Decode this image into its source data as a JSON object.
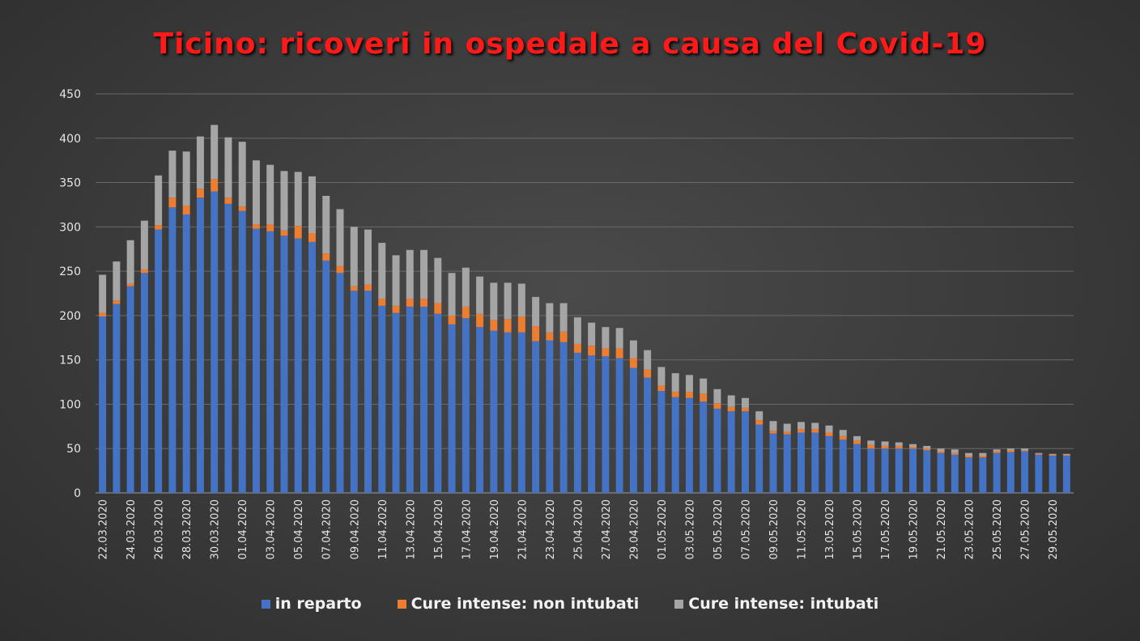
{
  "chart_data": {
    "type": "bar",
    "stacked": true,
    "title": "Ticino: ricoveri in ospedale a causa del Covid-19",
    "ylim": [
      0,
      450
    ],
    "y_ticks": [
      "0",
      "50",
      "100",
      "150",
      "200",
      "250",
      "300",
      "350",
      "400",
      "450"
    ],
    "grid": true,
    "legend_position": "bottom",
    "categories": [
      "22.03.2020",
      "23.03.2020",
      "24.03.2020",
      "25.03.2020",
      "26.03.2020",
      "27.03.2020",
      "28.03.2020",
      "29.03.2020",
      "30.03.2020",
      "31.03.2020",
      "01.04.2020",
      "02.04.2020",
      "03.04.2020",
      "04.04.2020",
      "05.04.2020",
      "06.04.2020",
      "07.04.2020",
      "08.04.2020",
      "09.04.2020",
      "10.04.2020",
      "11.04.2020",
      "12.04.2020",
      "13.04.2020",
      "14.04.2020",
      "15.04.2020",
      "16.04.2020",
      "17.04.2020",
      "18.04.2020",
      "19.04.2020",
      "20.04.2020",
      "21.04.2020",
      "22.04.2020",
      "23.04.2020",
      "24.04.2020",
      "25.04.2020",
      "26.04.2020",
      "27.04.2020",
      "28.04.2020",
      "29.04.2020",
      "30.04.2020",
      "01.05.2020",
      "02.05.2020",
      "03.05.2020",
      "04.05.2020",
      "05.05.2020",
      "06.05.2020",
      "07.05.2020",
      "08.05.2020",
      "09.05.2020",
      "10.05.2020",
      "11.05.2020",
      "12.05.2020",
      "13.05.2020",
      "14.05.2020",
      "15.05.2020",
      "16.05.2020",
      "17.05.2020",
      "18.05.2020",
      "19.05.2020",
      "20.05.2020",
      "21.05.2020",
      "22.05.2020",
      "23.05.2020",
      "24.05.2020",
      "25.05.2020",
      "26.05.2020",
      "27.05.2020",
      "28.05.2020",
      "29.05.2020",
      "30.05.2020"
    ],
    "tick_labels": [
      "22.03.2020",
      "",
      "24.03.2020",
      "",
      "26.03.2020",
      "",
      "28.03.2020",
      "",
      "30.03.2020",
      "",
      "01.04.2020",
      "",
      "03.04.2020",
      "",
      "05.04.2020",
      "",
      "07.04.2020",
      "",
      "09.04.2020",
      "",
      "11.04.2020",
      "",
      "13.04.2020",
      "",
      "15.04.2020",
      "",
      "17.04.2020",
      "",
      "19.04.2020",
      "",
      "21.04.2020",
      "",
      "23.04.2020",
      "",
      "25.04.2020",
      "",
      "27.04.2020",
      "",
      "29.04.2020",
      "",
      "01.05.2020",
      "",
      "03.05.2020",
      "",
      "05.05.2020",
      "",
      "07.05.2020",
      "",
      "09.05.2020",
      "",
      "11.05.2020",
      "",
      "13.05.2020",
      "",
      "15.05.2020",
      "",
      "17.05.2020",
      "",
      "19.05.2020",
      "",
      "21.05.2020",
      "",
      "23.05.2020",
      "",
      "25.05.2020",
      "",
      "27.05.2020",
      "",
      "29.05.2020",
      ""
    ],
    "series": [
      {
        "name": "in reparto",
        "color": "#4472c4",
        "values": [
          199,
          213,
          233,
          248,
          297,
          322,
          314,
          333,
          340,
          326,
          318,
          298,
          295,
          290,
          287,
          283,
          262,
          248,
          228,
          228,
          211,
          203,
          210,
          210,
          202,
          190,
          197,
          187,
          183,
          181,
          181,
          171,
          172,
          170,
          158,
          155,
          154,
          152,
          141,
          130,
          115,
          108,
          107,
          103,
          95,
          92,
          92,
          77,
          67,
          66,
          68,
          68,
          64,
          60,
          55,
          50,
          50,
          50,
          50,
          48,
          45,
          43,
          40,
          40,
          45,
          46,
          47,
          43,
          42,
          42
        ]
      },
      {
        "name": "Cure intense: non intubati",
        "color": "#ed7d31",
        "values": [
          4,
          4,
          3,
          4,
          5,
          11,
          10,
          10,
          14,
          7,
          5,
          5,
          8,
          6,
          14,
          10,
          8,
          8,
          5,
          7,
          8,
          8,
          9,
          9,
          12,
          10,
          13,
          15,
          12,
          15,
          18,
          17,
          9,
          12,
          10,
          11,
          9,
          11,
          11,
          9,
          6,
          6,
          7,
          9,
          6,
          5,
          4,
          5,
          3,
          3,
          4,
          4,
          4,
          4,
          4,
          4,
          3,
          3,
          2,
          2,
          2,
          2,
          2,
          2,
          2,
          2,
          1,
          1,
          1,
          1
        ]
      },
      {
        "name": "Cure intense: intubati",
        "color": "#a5a5a5",
        "values": [
          43,
          44,
          49,
          55,
          56,
          53,
          61,
          59,
          61,
          68,
          73,
          72,
          67,
          67,
          61,
          64,
          65,
          64,
          67,
          62,
          63,
          57,
          55,
          55,
          51,
          48,
          44,
          42,
          42,
          41,
          37,
          33,
          33,
          32,
          30,
          26,
          24,
          23,
          20,
          22,
          21,
          21,
          19,
          17,
          16,
          13,
          11,
          10,
          11,
          9,
          8,
          7,
          8,
          7,
          5,
          5,
          5,
          4,
          3,
          3,
          3,
          4,
          3,
          3,
          2,
          2,
          2,
          1,
          1,
          1
        ]
      }
    ]
  }
}
